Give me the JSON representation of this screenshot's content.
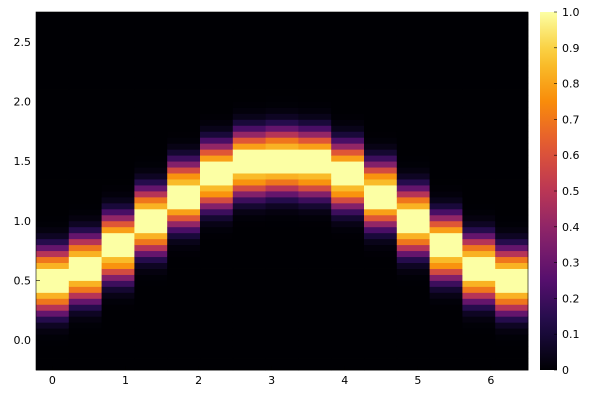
{
  "chart_data": {
    "type": "heatmap",
    "title": "",
    "xlabel": "",
    "ylabel": "",
    "x": [
      0,
      0.4488,
      0.8976,
      1.3464,
      1.7952,
      2.244,
      2.6928,
      3.1416,
      3.5904,
      4.0392,
      4.488,
      4.9368,
      5.3856,
      5.8344,
      6.2832
    ],
    "ridge_y": [
      0.5,
      0.6,
      0.78,
      1.0,
      1.22,
      1.38,
      1.48,
      1.5,
      1.48,
      1.38,
      1.22,
      1.0,
      0.78,
      0.6,
      0.5
    ],
    "ridge_half_width": 0.1,
    "glow_width": 0.25,
    "xlim": [
      -0.2244,
      6.5076
    ],
    "ylim": [
      -0.25,
      2.75
    ],
    "y_resolution": 0.05,
    "x_ticks": [
      0,
      1,
      2,
      3,
      4,
      5,
      6
    ],
    "y_ticks": [
      0.0,
      0.5,
      1.0,
      1.5,
      2.0,
      2.5
    ],
    "y_tick_labels": [
      "0.0",
      "0.5",
      "1.0",
      "1.5",
      "2.0",
      "2.5"
    ],
    "colorbar": {
      "colormap": "inferno",
      "range": [
        0,
        1
      ],
      "ticks": [
        0,
        0.1,
        0.2,
        0.3,
        0.4,
        0.5,
        0.6,
        0.7,
        0.8,
        0.9,
        1.0
      ],
      "tick_labels": [
        "0",
        "0.1",
        "0.2",
        "0.3",
        "0.4",
        "0.5",
        "0.6",
        "0.7",
        "0.8",
        "0.9",
        "1.0"
      ]
    },
    "grid": false,
    "legend": "none"
  }
}
